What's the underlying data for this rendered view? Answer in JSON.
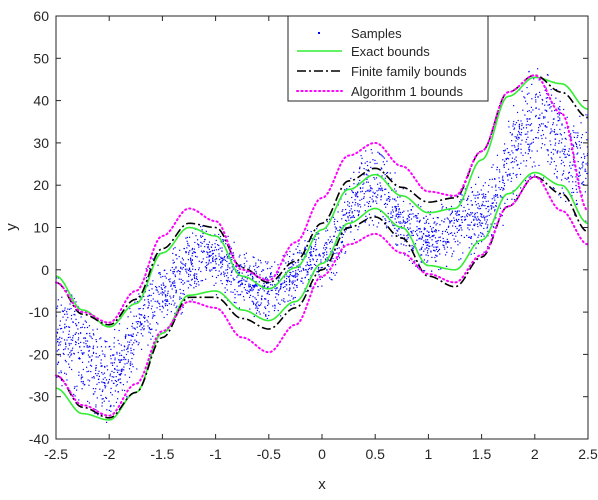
{
  "chart_data": {
    "type": "scatter",
    "title": "",
    "xlabel": "x",
    "ylabel": "y",
    "xlim": [
      -2.5,
      2.5
    ],
    "ylim": [
      -40,
      60
    ],
    "xticks": [
      -2.5,
      -2,
      -1.5,
      -1,
      -0.5,
      0,
      0.5,
      1,
      1.5,
      2,
      2.5
    ],
    "xtick_labels": [
      "-2.5",
      "-2",
      "-1.5",
      "-1",
      "-0.5",
      "0",
      "0.5",
      "1",
      "1.5",
      "2",
      "2.5"
    ],
    "yticks": [
      -40,
      -30,
      -20,
      -10,
      0,
      10,
      20,
      30,
      40,
      50,
      60
    ],
    "ytick_labels": [
      "-40",
      "-30",
      "-20",
      "-10",
      "0",
      "10",
      "20",
      "30",
      "40",
      "50",
      "60"
    ],
    "grid": false,
    "legend": {
      "placement": "top-center",
      "entries": [
        "Samples",
        "Exact bounds",
        "Finite family bounds",
        "Algorithm 1 bounds"
      ]
    },
    "series": [
      {
        "name": "Samples",
        "kind": "scatter",
        "color": "#0000ff",
        "approx_count": 3000,
        "x_range": [
          -2.5,
          2.5
        ],
        "center_x": [
          -2.5,
          -2.0,
          -1.5,
          -1.1,
          -0.5,
          0.0,
          0.45,
          1.0,
          1.5,
          2.0,
          2.5
        ],
        "center_y": [
          -14.5,
          -25.0,
          -5.0,
          2.5,
          -5.0,
          3.5,
          19.5,
          7.0,
          13.0,
          35.0,
          24.0
        ],
        "half_width_y": [
          12.0,
          11.0,
          8.5,
          7.5,
          6.5,
          7.0,
          8.5,
          7.0,
          8.5,
          12.0,
          12.0
        ]
      },
      {
        "name": "Exact bounds",
        "kind": "line",
        "style": "solid",
        "color": "#33ee33",
        "x": [
          -2.5,
          -2.25,
          -2.0,
          -1.75,
          -1.5,
          -1.25,
          -1.0,
          -0.75,
          -0.5,
          -0.25,
          0.0,
          0.25,
          0.5,
          0.75,
          1.0,
          1.25,
          1.5,
          1.75,
          2.0,
          2.25,
          2.5
        ],
        "upper": [
          -1.5,
          -9.5,
          -13.5,
          -8.0,
          4.0,
          10.0,
          8.0,
          -1.5,
          -4.5,
          0.5,
          9.5,
          19.0,
          22.5,
          17.5,
          13.5,
          14.5,
          26.0,
          41.0,
          45.5,
          44.0,
          38.0
        ],
        "lower": [
          -28.0,
          -34.0,
          -35.5,
          -29.0,
          -15.0,
          -6.0,
          -5.0,
          -9.5,
          -12.0,
          -7.5,
          1.5,
          11.0,
          14.5,
          10.0,
          1.0,
          0.0,
          7.0,
          18.0,
          23.0,
          20.0,
          11.0
        ]
      },
      {
        "name": "Finite family bounds",
        "kind": "line",
        "style": "dash-dot",
        "color": "#000000",
        "x": [
          -2.5,
          -2.25,
          -2.0,
          -1.75,
          -1.5,
          -1.25,
          -1.0,
          -0.75,
          -0.5,
          -0.25,
          0.0,
          0.25,
          0.5,
          0.75,
          1.0,
          1.25,
          1.5,
          1.75,
          2.0,
          2.25,
          2.5
        ],
        "upper": [
          -3.0,
          -10.5,
          -13.0,
          -7.0,
          5.0,
          11.0,
          10.0,
          0.5,
          -3.0,
          2.0,
          11.0,
          21.0,
          24.0,
          19.5,
          16.0,
          17.0,
          28.0,
          42.0,
          46.0,
          42.0,
          36.0
        ],
        "lower": [
          -25.0,
          -32.5,
          -35.0,
          -29.0,
          -16.0,
          -6.5,
          -6.5,
          -11.5,
          -14.0,
          -9.0,
          0.0,
          10.0,
          12.5,
          7.5,
          -1.5,
          -4.0,
          3.0,
          15.0,
          22.0,
          18.0,
          9.0
        ]
      },
      {
        "name": "Algorithm 1 bounds",
        "kind": "line",
        "style": "dotted",
        "color": "#ff00ff",
        "x": [
          -2.5,
          -2.25,
          -2.0,
          -1.75,
          -1.5,
          -1.25,
          -1.0,
          -0.75,
          -0.5,
          -0.25,
          0.0,
          0.25,
          0.5,
          0.75,
          1.0,
          1.25,
          1.5,
          1.75,
          2.0,
          2.25,
          2.5
        ],
        "upper": [
          -3.0,
          -10.0,
          -12.5,
          -5.0,
          8.0,
          14.5,
          11.5,
          0.0,
          -2.5,
          6.5,
          17.0,
          27.0,
          30.0,
          24.5,
          18.5,
          17.5,
          28.0,
          42.0,
          46.0,
          37.0,
          14.0
        ],
        "lower": [
          -25.0,
          -32.0,
          -34.5,
          -27.0,
          -14.5,
          -7.5,
          -9.0,
          -16.0,
          -19.5,
          -13.0,
          -1.5,
          6.0,
          8.5,
          4.0,
          -1.0,
          -3.0,
          3.5,
          15.0,
          22.0,
          14.0,
          6.0
        ]
      }
    ]
  }
}
